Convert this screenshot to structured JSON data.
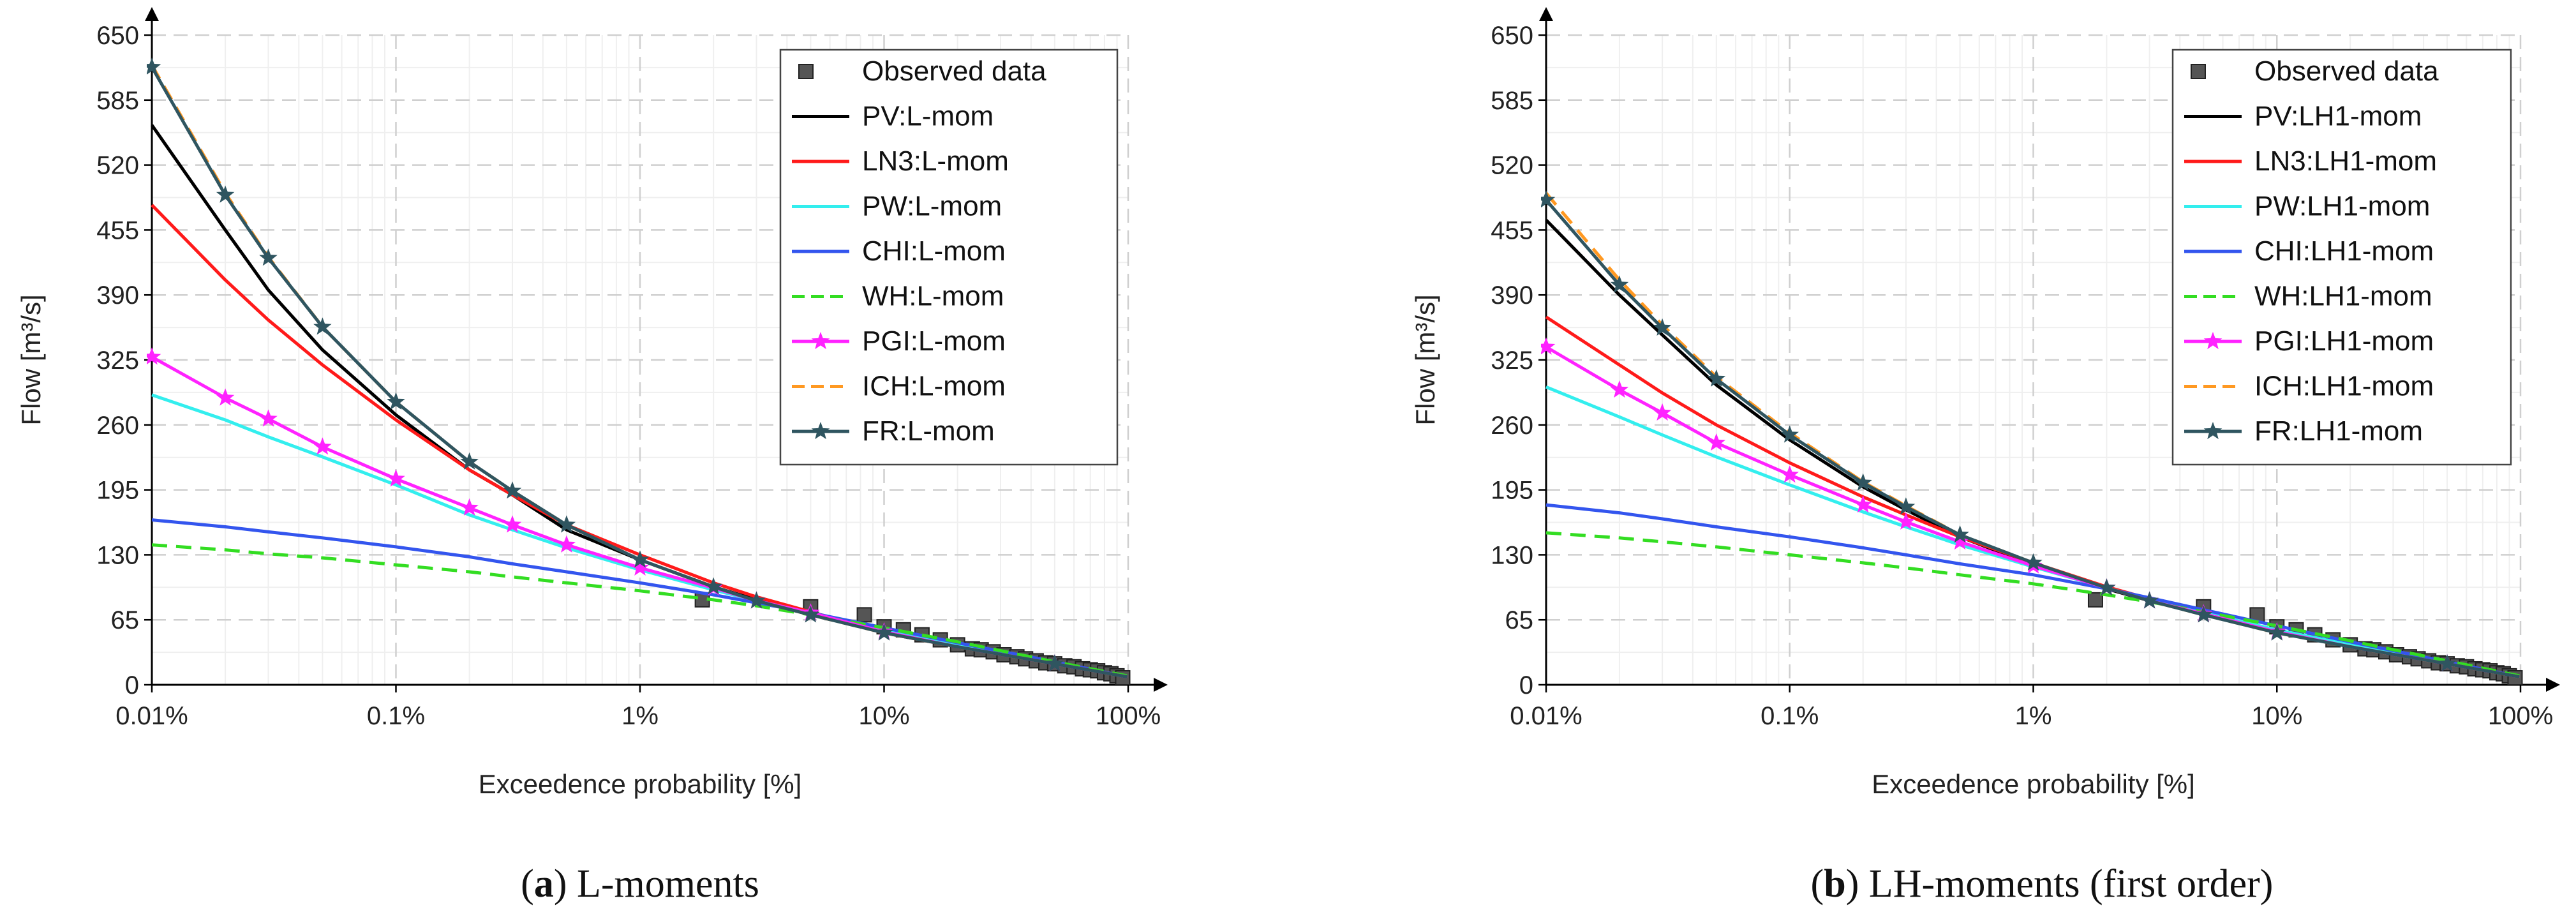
{
  "chart_data": [
    {
      "type": "line",
      "caption_letter": "a",
      "caption_text": "L-moments",
      "xlabel": "Exceedence probability [%]",
      "ylabel": "Flow [m³/s]",
      "x_scale": "log",
      "xlim": [
        0.01,
        100
      ],
      "ylim": [
        0,
        650
      ],
      "x_ticks": [
        0.01,
        0.1,
        1,
        10,
        100
      ],
      "x_tick_labels": [
        "0.01%",
        "0.1%",
        "1%",
        "10%",
        "100%"
      ],
      "y_ticks": [
        0,
        65,
        130,
        195,
        260,
        325,
        390,
        455,
        520,
        585,
        650
      ],
      "y_tick_labels": [
        "0",
        "65",
        "130",
        "195",
        "260",
        "325",
        "390",
        "455",
        "520",
        "585",
        "650"
      ],
      "grid": true,
      "legend_position": "top-right",
      "observed": {
        "name": "Observed data",
        "x": [
          1.8,
          5,
          8.3,
          10,
          12,
          14.3,
          17,
          20,
          23,
          25,
          28,
          31,
          35,
          38,
          42,
          46,
          50,
          55,
          60,
          65,
          70,
          75,
          80,
          85,
          90,
          95
        ],
        "y": [
          85,
          78,
          70,
          58,
          55,
          50,
          45,
          40,
          36,
          35,
          33,
          30,
          28,
          26,
          24,
          22,
          21,
          19,
          18,
          16,
          15,
          14,
          12,
          11,
          9,
          7
        ]
      },
      "series": [
        {
          "name": "PV:L-mom",
          "color": "#000000",
          "dash": "solid",
          "marker": "none",
          "x": [
            0.01,
            0.02,
            0.03,
            0.05,
            0.1,
            0.2,
            0.3,
            0.5,
            1,
            2,
            3,
            5,
            10,
            20,
            50,
            99
          ],
          "y": [
            560,
            455,
            395,
            335,
            270,
            215,
            190,
            155,
            125,
            98,
            85,
            72,
            52,
            38,
            22,
            8
          ]
        },
        {
          "name": "LN3:L-mom",
          "color": "#ff1a1a",
          "dash": "solid",
          "marker": "none",
          "x": [
            0.01,
            0.02,
            0.03,
            0.05,
            0.1,
            0.2,
            0.3,
            0.5,
            1,
            2,
            3,
            5,
            10,
            20,
            50,
            99
          ],
          "y": [
            480,
            405,
            365,
            320,
            265,
            215,
            190,
            160,
            130,
            102,
            88,
            73,
            52,
            38,
            22,
            8
          ]
        },
        {
          "name": "PW:L-mom",
          "color": "#33eeee",
          "dash": "solid",
          "marker": "none",
          "x": [
            0.01,
            0.02,
            0.03,
            0.05,
            0.1,
            0.2,
            0.3,
            0.5,
            1,
            2,
            3,
            5,
            10,
            20,
            50,
            99
          ],
          "y": [
            290,
            265,
            248,
            228,
            200,
            170,
            155,
            137,
            115,
            95,
            84,
            72,
            55,
            40,
            22,
            8
          ]
        },
        {
          "name": "CHI:L-mom",
          "color": "#3355ee",
          "dash": "solid",
          "marker": "none",
          "x": [
            0.01,
            0.02,
            0.03,
            0.05,
            0.1,
            0.2,
            0.3,
            0.5,
            1,
            2,
            3,
            5,
            10,
            20,
            50,
            99
          ],
          "y": [
            165,
            158,
            153,
            147,
            138,
            128,
            121,
            113,
            102,
            90,
            82,
            72,
            57,
            42,
            23,
            8
          ]
        },
        {
          "name": "WH:L-mom",
          "color": "#33dd22",
          "dash": "dashed",
          "marker": "none",
          "x": [
            0.01,
            0.02,
            0.03,
            0.05,
            0.1,
            0.2,
            0.3,
            0.5,
            1,
            2,
            3,
            5,
            10,
            20,
            50,
            99
          ],
          "y": [
            140,
            135,
            131,
            127,
            120,
            113,
            108,
            102,
            94,
            85,
            79,
            70,
            57,
            43,
            23,
            9
          ]
        },
        {
          "name": "PGI:L-mom",
          "color": "#ff22ff",
          "dash": "solid",
          "marker": "star",
          "x": [
            0.01,
            0.02,
            0.03,
            0.05,
            0.1,
            0.2,
            0.3,
            0.5,
            1,
            2,
            3,
            5,
            10,
            20,
            50,
            99
          ],
          "y": [
            328,
            287,
            266,
            238,
            206,
            177,
            160,
            140,
            117,
            97,
            84,
            72,
            53,
            38,
            21,
            8
          ]
        },
        {
          "name": "ICH:L-mom",
          "color": "#ff9922",
          "dash": "dashed",
          "marker": "none",
          "x": [
            0.01,
            0.02,
            0.03,
            0.05,
            0.1,
            0.2,
            0.3,
            0.5,
            1,
            2,
            3,
            5,
            10,
            20,
            50,
            99
          ],
          "y": [
            620,
            492,
            428,
            358,
            283,
            223,
            194,
            160,
            125,
            98,
            84,
            70,
            52,
            38,
            21,
            8
          ]
        },
        {
          "name": "FR:L-mom",
          "color": "#2f5560",
          "dash": "solid",
          "marker": "star",
          "x": [
            0.01,
            0.02,
            0.03,
            0.05,
            0.1,
            0.2,
            0.3,
            0.5,
            1,
            2,
            3,
            5,
            10,
            20,
            50,
            99
          ],
          "y": [
            618,
            490,
            427,
            358,
            283,
            223,
            194,
            160,
            125,
            98,
            84,
            70,
            52,
            38,
            21,
            8
          ]
        }
      ]
    },
    {
      "type": "line",
      "caption_letter": "b",
      "caption_text": "LH-moments (first order)",
      "xlabel": "Exceedence probability [%]",
      "ylabel": "Flow [m³/s]",
      "x_scale": "log",
      "xlim": [
        0.01,
        100
      ],
      "ylim": [
        0,
        650
      ],
      "x_ticks": [
        0.01,
        0.1,
        1,
        10,
        100
      ],
      "x_tick_labels": [
        "0.01%",
        "0.1%",
        "1%",
        "10%",
        "100%"
      ],
      "y_ticks": [
        0,
        65,
        130,
        195,
        260,
        325,
        390,
        455,
        520,
        585,
        650
      ],
      "y_tick_labels": [
        "0",
        "65",
        "130",
        "195",
        "260",
        "325",
        "390",
        "455",
        "520",
        "585",
        "650"
      ],
      "grid": true,
      "legend_position": "top-right",
      "observed": {
        "name": "Observed data",
        "x": [
          1.8,
          5,
          8.3,
          10,
          12,
          14.3,
          17,
          20,
          23,
          25,
          28,
          31,
          35,
          38,
          42,
          46,
          50,
          55,
          60,
          65,
          70,
          75,
          80,
          85,
          90,
          95
        ],
        "y": [
          85,
          78,
          70,
          58,
          55,
          50,
          45,
          40,
          36,
          35,
          33,
          30,
          28,
          26,
          24,
          22,
          21,
          19,
          18,
          16,
          15,
          14,
          12,
          11,
          9,
          7
        ]
      },
      "series": [
        {
          "name": "PV:LH1-mom",
          "color": "#000000",
          "dash": "solid",
          "marker": "none",
          "x": [
            0.01,
            0.02,
            0.03,
            0.05,
            0.1,
            0.2,
            0.3,
            0.5,
            1,
            2,
            3,
            5,
            10,
            20,
            50,
            99
          ],
          "y": [
            465,
            390,
            350,
            300,
            245,
            198,
            175,
            148,
            120,
            96,
            84,
            71,
            53,
            39,
            22,
            8
          ]
        },
        {
          "name": "LN3:LH1-mom",
          "color": "#ff1a1a",
          "dash": "solid",
          "marker": "none",
          "x": [
            0.01,
            0.02,
            0.03,
            0.05,
            0.1,
            0.2,
            0.3,
            0.5,
            1,
            2,
            3,
            5,
            10,
            20,
            50,
            99
          ],
          "y": [
            368,
            320,
            292,
            260,
            222,
            188,
            170,
            148,
            122,
            98,
            86,
            72,
            54,
            39,
            22,
            8
          ]
        },
        {
          "name": "PW:LH1-mom",
          "color": "#33eeee",
          "dash": "solid",
          "marker": "none",
          "x": [
            0.01,
            0.02,
            0.03,
            0.05,
            0.1,
            0.2,
            0.3,
            0.5,
            1,
            2,
            3,
            5,
            10,
            20,
            50,
            99
          ],
          "y": [
            298,
            268,
            250,
            228,
            200,
            173,
            158,
            140,
            118,
            97,
            85,
            72,
            55,
            40,
            22,
            8
          ]
        },
        {
          "name": "CHI:LH1-mom",
          "color": "#3355ee",
          "dash": "solid",
          "marker": "none",
          "x": [
            0.01,
            0.02,
            0.03,
            0.05,
            0.1,
            0.2,
            0.3,
            0.5,
            1,
            2,
            3,
            5,
            10,
            20,
            50,
            99
          ],
          "y": [
            180,
            172,
            166,
            158,
            148,
            137,
            130,
            121,
            110,
            96,
            87,
            75,
            59,
            43,
            23,
            8
          ]
        },
        {
          "name": "WH:LH1-mom",
          "color": "#33dd22",
          "dash": "dashed",
          "marker": "none",
          "x": [
            0.01,
            0.02,
            0.03,
            0.05,
            0.1,
            0.2,
            0.3,
            0.5,
            1,
            2,
            3,
            5,
            10,
            20,
            50,
            99
          ],
          "y": [
            152,
            147,
            143,
            138,
            130,
            122,
            117,
            110,
            101,
            90,
            83,
            73,
            59,
            44,
            24,
            9
          ]
        },
        {
          "name": "PGI:LH1-mom",
          "color": "#ff22ff",
          "dash": "solid",
          "marker": "star",
          "x": [
            0.01,
            0.02,
            0.03,
            0.05,
            0.1,
            0.2,
            0.3,
            0.5,
            1,
            2,
            3,
            5,
            10,
            20,
            50,
            99
          ],
          "y": [
            338,
            295,
            272,
            242,
            210,
            180,
            163,
            143,
            119,
            97,
            84,
            71,
            53,
            38,
            21,
            8
          ]
        },
        {
          "name": "ICH:LH1-mom",
          "color": "#ff9922",
          "dash": "dashed",
          "marker": "none",
          "x": [
            0.01,
            0.02,
            0.03,
            0.05,
            0.1,
            0.2,
            0.3,
            0.5,
            1,
            2,
            3,
            5,
            10,
            20,
            50,
            99
          ],
          "y": [
            492,
            405,
            360,
            308,
            252,
            203,
            179,
            150,
            122,
            97,
            84,
            70,
            52,
            38,
            21,
            8
          ]
        },
        {
          "name": "FR:LH1-mom",
          "color": "#2f5560",
          "dash": "solid",
          "marker": "star",
          "x": [
            0.01,
            0.02,
            0.03,
            0.05,
            0.1,
            0.2,
            0.3,
            0.5,
            1,
            2,
            3,
            5,
            10,
            20,
            50,
            99
          ],
          "y": [
            485,
            400,
            357,
            306,
            250,
            202,
            178,
            150,
            122,
            97,
            84,
            70,
            52,
            38,
            21,
            8
          ]
        }
      ]
    }
  ]
}
